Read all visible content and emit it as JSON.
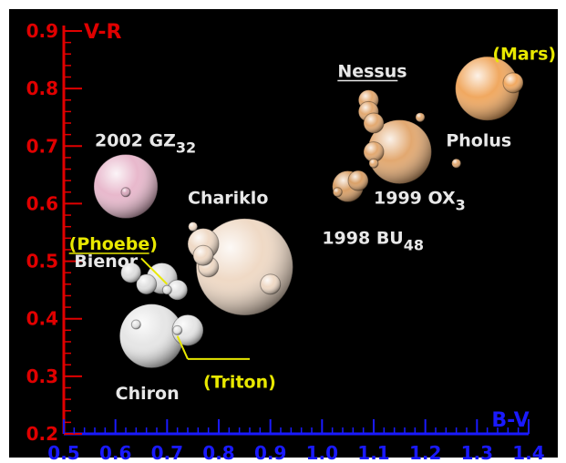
{
  "chart_data": {
    "type": "scatter",
    "title": "",
    "xlabel": "B-V",
    "ylabel": "V-R",
    "xlim": [
      0.5,
      1.4
    ],
    "ylim": [
      0.2,
      0.9
    ],
    "x_ticks": [
      "0.5",
      "0.6",
      "0.7",
      "0.8",
      "0.9",
      "1.0",
      "1.1",
      "1.2",
      "1.3",
      "1.4"
    ],
    "y_ticks": [
      "0.2",
      "0.3",
      "0.4",
      "0.5",
      "0.6",
      "0.7",
      "0.8",
      "0.9"
    ],
    "grid": false,
    "colors": {
      "background": "#000000",
      "y_axis": "#e00000",
      "x_axis": "#1a1aff",
      "label_default": "#e8e8e8",
      "label_highlight": "#e8e800"
    },
    "points": [
      {
        "name": "2002 GZ32",
        "x": 0.62,
        "y": 0.63,
        "color": "#e8b8cc",
        "size": "large"
      },
      {
        "name": "2002 GZ32 (inner)",
        "x": 0.62,
        "y": 0.62,
        "color": "#d8a8bc",
        "size": "tiny"
      },
      {
        "name": "Chariklo",
        "x": 0.85,
        "y": 0.49,
        "color": "#efd9c5",
        "size": "xlarge"
      },
      {
        "name": "Chariklo (1)",
        "x": 0.77,
        "y": 0.53,
        "color": "#efd9c5",
        "size": "medium"
      },
      {
        "name": "Chariklo (2)",
        "x": 0.78,
        "y": 0.49,
        "color": "#efd9c5",
        "size": "small"
      },
      {
        "name": "Chariklo (3)",
        "x": 0.77,
        "y": 0.51,
        "color": "#efd9c5",
        "size": "small"
      },
      {
        "name": "Chariklo (4)",
        "x": 0.9,
        "y": 0.46,
        "color": "#efd9c5",
        "size": "small"
      },
      {
        "name": "Chariklo (5)",
        "x": 0.75,
        "y": 0.56,
        "color": "#efd9c5",
        "size": "tiny"
      },
      {
        "name": "Bienor",
        "x": 0.69,
        "y": 0.47,
        "color": "#e0e0e0",
        "size": "medium"
      },
      {
        "name": "Bienor (1)",
        "x": 0.66,
        "y": 0.46,
        "color": "#e0e0e0",
        "size": "small"
      },
      {
        "name": "Bienor (2)",
        "x": 0.72,
        "y": 0.45,
        "color": "#e0e0e0",
        "size": "small"
      },
      {
        "name": "Bienor (3)",
        "x": 0.63,
        "y": 0.48,
        "color": "#e0e0e0",
        "size": "small"
      },
      {
        "name": "(Phoebe)",
        "x": 0.7,
        "y": 0.45,
        "color": "#e0e0e0",
        "size": "tiny"
      },
      {
        "name": "Chiron",
        "x": 0.67,
        "y": 0.37,
        "color": "#e6e6e6",
        "size": "large"
      },
      {
        "name": "Chiron (1)",
        "x": 0.64,
        "y": 0.39,
        "color": "#e6e6e6",
        "size": "tiny"
      },
      {
        "name": "(Triton)",
        "x": 0.74,
        "y": 0.38,
        "color": "#e6e6e6",
        "size": "medium"
      },
      {
        "name": "(Triton) inner",
        "x": 0.72,
        "y": 0.38,
        "color": "#e6e6e6",
        "size": "tiny"
      },
      {
        "name": "Nessus",
        "x": 1.09,
        "y": 0.78,
        "color": "#e2a870",
        "size": "small"
      },
      {
        "name": "Nessus (1)",
        "x": 1.09,
        "y": 0.76,
        "color": "#e2a870",
        "size": "small"
      },
      {
        "name": "Nessus (2)",
        "x": 1.1,
        "y": 0.74,
        "color": "#e2a870",
        "size": "small"
      },
      {
        "name": "1999 OX3",
        "x": 1.15,
        "y": 0.69,
        "color": "#e2a870",
        "size": "large"
      },
      {
        "name": "1999 OX3 (1)",
        "x": 1.1,
        "y": 0.69,
        "color": "#e2a870",
        "size": "small"
      },
      {
        "name": "1999 OX3 (2)",
        "x": 1.1,
        "y": 0.67,
        "color": "#e2a870",
        "size": "tiny"
      },
      {
        "name": "1999 OX3 (3)",
        "x": 1.19,
        "y": 0.75,
        "color": "#e2a870",
        "size": "tiny"
      },
      {
        "name": "1998 BU48",
        "x": 1.05,
        "y": 0.63,
        "color": "#d9a068",
        "size": "medium"
      },
      {
        "name": "1998 BU48 (1)",
        "x": 1.07,
        "y": 0.64,
        "color": "#d9a068",
        "size": "small"
      },
      {
        "name": "1998 BU48 (2)",
        "x": 1.03,
        "y": 0.62,
        "color": "#d9a068",
        "size": "tiny"
      },
      {
        "name": "Pholus",
        "x": 1.26,
        "y": 0.67,
        "color": "#e2a870",
        "size": "tiny"
      },
      {
        "name": "Pholus (main)",
        "x": 1.32,
        "y": 0.8,
        "color": "#f0a860",
        "size": "large"
      },
      {
        "name": "(Mars)",
        "x": 1.37,
        "y": 0.81,
        "color": "#f0a860",
        "size": "small"
      }
    ],
    "labels": [
      {
        "text": "2002 GZ",
        "sub": "32",
        "x": 0.56,
        "y": 0.7,
        "color": "default"
      },
      {
        "text": "Chariklo",
        "sub": "",
        "x": 0.74,
        "y": 0.6,
        "color": "default"
      },
      {
        "text": "(Phoebe)",
        "sub": "",
        "x": 0.51,
        "y": 0.52,
        "color": "highlight"
      },
      {
        "text": "Bienor",
        "sub": "",
        "x": 0.52,
        "y": 0.49,
        "color": "default"
      },
      {
        "text": "Chiron",
        "sub": "",
        "x": 0.6,
        "y": 0.26,
        "color": "default"
      },
      {
        "text": "(Triton)",
        "sub": "",
        "x": 0.77,
        "y": 0.28,
        "color": "highlight"
      },
      {
        "text": "Nessus",
        "sub": "",
        "x": 1.03,
        "y": 0.82,
        "color": "default"
      },
      {
        "text": "1999 OX",
        "sub": "3",
        "x": 1.1,
        "y": 0.6,
        "color": "default"
      },
      {
        "text": "1998 BU",
        "sub": "48",
        "x": 1.0,
        "y": 0.53,
        "color": "default"
      },
      {
        "text": "Pholus",
        "sub": "",
        "x": 1.24,
        "y": 0.7,
        "color": "default"
      },
      {
        "text": "(Mars)",
        "sub": "",
        "x": 1.33,
        "y": 0.85,
        "color": "highlight"
      }
    ]
  }
}
